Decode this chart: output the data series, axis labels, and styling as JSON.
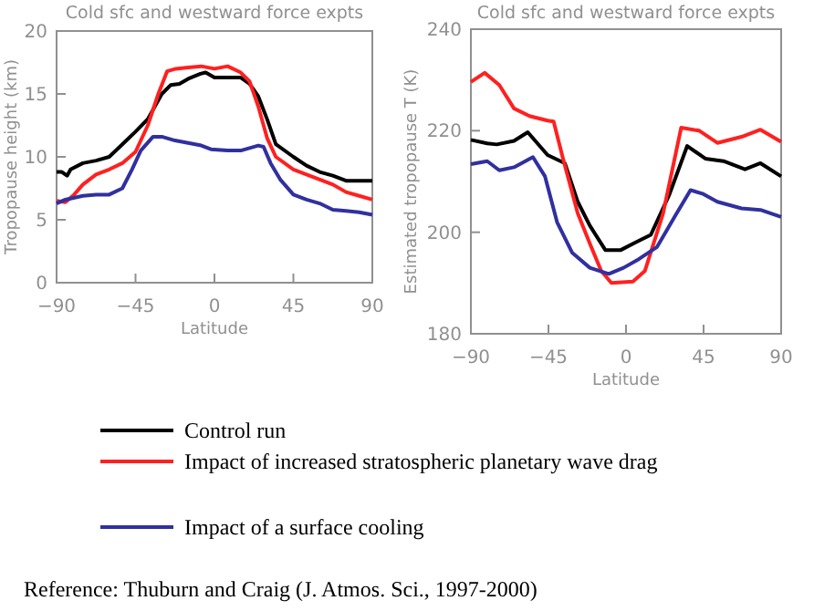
{
  "chart_data": [
    {
      "type": "line",
      "title": "Cold sfc and westward force expts",
      "xlabel": "Latitude",
      "ylabel": "Tropopause height (km)",
      "xlim": [
        -90,
        90
      ],
      "ylim": [
        0,
        20
      ],
      "xticks": [
        -90,
        -45,
        0,
        45,
        90
      ],
      "yticks": [
        0,
        5,
        10,
        15,
        20
      ],
      "legend": "bottom",
      "annotations": [
        "Reference: Thuburn and Craig (J. Atmos. Sci., 1997-2000)"
      ],
      "series": [
        {
          "name": "Control run",
          "color": "#000000",
          "x": [
            -90,
            -87,
            -84,
            -82,
            -75,
            -67.5,
            -60,
            -52.5,
            -45,
            -38,
            -30,
            -25,
            -20,
            -15,
            -8,
            -5,
            0,
            7.5,
            15,
            20,
            25,
            30,
            35,
            45,
            52.5,
            60,
            67.5,
            75,
            82.5,
            90
          ],
          "values": [
            8.8,
            8.8,
            8.5,
            9.0,
            9.5,
            9.7,
            10.0,
            11.0,
            12.0,
            13.0,
            15.0,
            15.7,
            15.8,
            16.2,
            16.6,
            16.7,
            16.3,
            16.3,
            16.3,
            15.8,
            14.8,
            13.0,
            11.0,
            10.0,
            9.3,
            8.8,
            8.5,
            8.1,
            8.1,
            8.1
          ]
        },
        {
          "name": "Impact of increased stratospheric planetary wave drag",
          "color": "#ff2020",
          "x": [
            -90,
            -85,
            -80,
            -75,
            -67.5,
            -60,
            -52.5,
            -45,
            -38,
            -32,
            -27,
            -22,
            -15,
            -7.5,
            0,
            7.5,
            15,
            20,
            25,
            30,
            35,
            45,
            52.5,
            60,
            67.5,
            75,
            82.5,
            90
          ],
          "values": [
            6.5,
            6.4,
            7.0,
            7.8,
            8.6,
            9.0,
            9.5,
            10.4,
            12.5,
            15.0,
            16.8,
            17.0,
            17.1,
            17.2,
            17.0,
            17.2,
            16.7,
            16.0,
            14.0,
            11.5,
            10.0,
            9.0,
            8.6,
            8.2,
            7.8,
            7.2,
            6.9,
            6.6
          ]
        },
        {
          "name": "Impact of a surface cooling",
          "color": "#3030a0",
          "x": [
            -90,
            -85,
            -75,
            -67.5,
            -60,
            -52.5,
            -47,
            -42,
            -35,
            -30,
            -22.5,
            -15,
            -7.5,
            -2,
            7.5,
            15,
            20,
            25,
            28,
            32,
            37.5,
            45,
            52.5,
            60,
            67.5,
            75,
            82.5,
            90
          ],
          "values": [
            6.3,
            6.6,
            6.9,
            7.0,
            7.0,
            7.5,
            9.0,
            10.5,
            11.6,
            11.6,
            11.3,
            11.1,
            10.9,
            10.6,
            10.5,
            10.5,
            10.7,
            10.9,
            10.8,
            9.5,
            8.2,
            7.0,
            6.6,
            6.3,
            5.8,
            5.7,
            5.6,
            5.4
          ]
        }
      ]
    },
    {
      "type": "line",
      "title": "Cold sfc and westward force expts",
      "xlabel": "Latitude",
      "ylabel": "Estimated tropopause T (K)",
      "xlim": [
        -90,
        90
      ],
      "ylim": [
        180,
        240
      ],
      "xticks": [
        -90,
        -45,
        0,
        45,
        90
      ],
      "yticks": [
        180,
        200,
        220,
        240
      ],
      "series": [
        {
          "color": "#000000",
          "x": [
            -90,
            -80.5,
            -75,
            -65,
            -57,
            -45.5,
            -35.5,
            -28,
            -21,
            -12,
            -3,
            5.6,
            14.4,
            25,
            35.5,
            46,
            56.6,
            69,
            78,
            90
          ],
          "values": [
            218.2,
            217.5,
            217.3,
            218,
            219.7,
            215.2,
            213.6,
            206,
            201.3,
            196.5,
            196.5,
            198,
            199.5,
            207.3,
            217,
            214.5,
            214,
            212.4,
            213.6,
            211
          ]
        },
        {
          "color": "#ff2020",
          "x": [
            -90,
            -82,
            -73.5,
            -65,
            -56,
            -45.5,
            -42,
            -36.6,
            -28,
            -21,
            -14.4,
            -8.5,
            4,
            11,
            21.5,
            32,
            42.5,
            53,
            67,
            78,
            90
          ],
          "values": [
            229.6,
            231.4,
            229,
            224.4,
            222.9,
            222,
            221.8,
            214.6,
            203.7,
            197.8,
            192.4,
            190,
            190.3,
            192.4,
            203.7,
            220.6,
            220,
            217.6,
            218.8,
            220.2,
            217.8
          ]
        },
        {
          "color": "#3030a0",
          "x": [
            -90,
            -80.5,
            -73.5,
            -65,
            -54,
            -47,
            -40,
            -31.3,
            -21,
            -10,
            -1.4,
            7.4,
            18,
            28.5,
            37.4,
            44.3,
            53,
            67,
            78,
            90
          ],
          "values": [
            213.4,
            214,
            212.2,
            212.8,
            214.8,
            211,
            202,
            196,
            193,
            191.8,
            193,
            194.7,
            197.1,
            203.2,
            208.3,
            207.6,
            206,
            204.7,
            204.4,
            203
          ]
        }
      ]
    }
  ]
}
